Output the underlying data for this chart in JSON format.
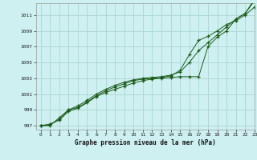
{
  "title": "Graphe pression niveau de la mer (hPa)",
  "bg_color": "#cff0f0",
  "grid_color": "#b0d8d8",
  "line_color": "#1a5c1a",
  "xlim": [
    -0.5,
    23
  ],
  "ylim": [
    996.5,
    1012.5
  ],
  "yticks": [
    997,
    999,
    1001,
    1003,
    1005,
    1007,
    1009,
    1011
  ],
  "xticks": [
    0,
    1,
    2,
    3,
    4,
    5,
    6,
    7,
    8,
    9,
    10,
    11,
    12,
    13,
    14,
    15,
    16,
    17,
    18,
    19,
    20,
    21,
    22,
    23
  ],
  "series1": [
    997.0,
    997.2,
    997.7,
    998.8,
    999.2,
    999.9,
    1000.7,
    1001.2,
    1001.6,
    1002.0,
    1002.4,
    1002.7,
    1002.9,
    1003.0,
    1003.1,
    1003.2,
    1003.2,
    1003.2,
    1007.0,
    1008.2,
    1009.0,
    1010.5,
    1011.2,
    1013.0
  ],
  "series2": [
    997.0,
    997.1,
    997.8,
    999.0,
    999.5,
    1000.2,
    1001.0,
    1001.6,
    1002.1,
    1002.5,
    1002.8,
    1003.0,
    1003.1,
    1003.2,
    1003.4,
    1003.8,
    1005.0,
    1006.5,
    1007.5,
    1008.5,
    1009.5,
    1010.5,
    1011.2,
    1012.8
  ],
  "series3": [
    997.0,
    997.0,
    998.0,
    999.0,
    999.3,
    1000.0,
    1000.8,
    1001.4,
    1001.9,
    1002.3,
    1002.7,
    1002.9,
    1003.0,
    1003.1,
    1003.3,
    1004.0,
    1006.0,
    1007.8,
    1008.3,
    1009.0,
    1009.8,
    1010.3,
    1011.0,
    1012.0
  ]
}
